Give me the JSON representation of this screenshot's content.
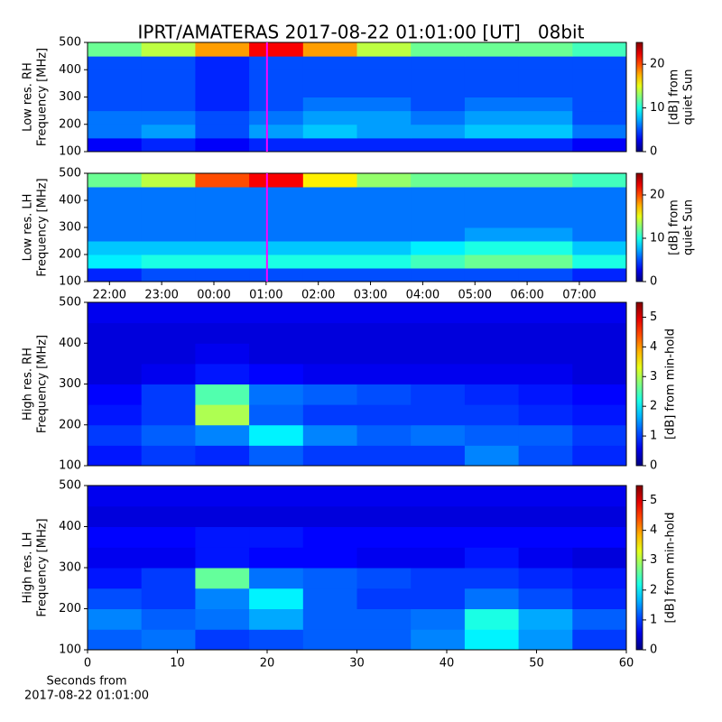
{
  "title": "IPRT/AMATERAS 2017-08-22 01:01:00 [UT]   08bit",
  "chart_data": [
    {
      "type": "heatmap",
      "ylabel": [
        "Low res. RH",
        "Frequency [MHz]"
      ],
      "ylim": [
        100,
        500
      ],
      "yticks": [
        100,
        200,
        300,
        400,
        500
      ],
      "xlim": [
        21.58,
        31.9
      ],
      "cursor": 25.017,
      "cursor_color": "#ff00ff",
      "colorbar": {
        "label": [
          "[dB] from",
          "quiet Sun"
        ],
        "clim": [
          0,
          25
        ],
        "ticks": [
          0,
          10,
          20
        ]
      },
      "z": [
        [
          3,
          4,
          3,
          4,
          4,
          4,
          4,
          4,
          4,
          3
        ],
        [
          6,
          7,
          5,
          7,
          8,
          7,
          7,
          8,
          8,
          6
        ],
        [
          6,
          6,
          5,
          6,
          7,
          7,
          6,
          7,
          7,
          5
        ],
        [
          5,
          5,
          4,
          5,
          6,
          6,
          5,
          6,
          6,
          5
        ],
        [
          5,
          5,
          4,
          5,
          5,
          5,
          5,
          5,
          5,
          5
        ],
        [
          5,
          5,
          4,
          5,
          5,
          5,
          5,
          5,
          5,
          5
        ],
        [
          5,
          5,
          4,
          5,
          5,
          5,
          5,
          5,
          5,
          5
        ],
        [
          12,
          14,
          18,
          22,
          18,
          14,
          12,
          12,
          12,
          11
        ]
      ]
    },
    {
      "type": "heatmap",
      "ylabel": [
        "Low res. LH",
        "Frequency [MHz]"
      ],
      "ylim": [
        100,
        500
      ],
      "yticks": [
        100,
        200,
        300,
        400,
        500
      ],
      "xlim": [
        21.58,
        31.9
      ],
      "cursor": 25.017,
      "cursor_color": "#ff00ff",
      "xticks": [
        {
          "value": 22,
          "label": "22:00"
        },
        {
          "value": 23,
          "label": "23:00"
        },
        {
          "value": 24,
          "label": "00:00"
        },
        {
          "value": 25,
          "label": "01:00"
        },
        {
          "value": 26,
          "label": "02:00"
        },
        {
          "value": 27,
          "label": "03:00"
        },
        {
          "value": 28,
          "label": "04:00"
        },
        {
          "value": 29,
          "label": "05:00"
        },
        {
          "value": 30,
          "label": "06:00"
        },
        {
          "value": 31,
          "label": "07:00"
        }
      ],
      "colorbar": {
        "label": [
          "[dB] from",
          "quiet Sun"
        ],
        "clim": [
          0,
          25
        ],
        "ticks": [
          0,
          10,
          20
        ]
      },
      "z": [
        [
          4,
          5,
          5,
          5,
          5,
          5,
          5,
          5,
          5,
          4
        ],
        [
          9,
          10,
          10,
          10,
          10,
          10,
          11,
          12,
          12,
          10
        ],
        [
          8,
          8,
          8,
          8,
          8,
          8,
          9,
          10,
          10,
          8
        ],
        [
          6,
          6,
          6,
          6,
          6,
          6,
          6,
          7,
          7,
          6
        ],
        [
          6,
          6,
          6,
          6,
          6,
          6,
          6,
          6,
          6,
          6
        ],
        [
          6,
          6,
          6,
          6,
          6,
          6,
          6,
          6,
          6,
          6
        ],
        [
          6,
          6,
          6,
          6,
          6,
          6,
          6,
          6,
          6,
          6
        ],
        [
          12,
          14,
          20,
          22,
          16,
          13,
          12,
          12,
          12,
          11
        ]
      ]
    },
    {
      "type": "heatmap",
      "ylabel": [
        "High res. RH",
        "Frequency [MHz]"
      ],
      "ylim": [
        100,
        500
      ],
      "yticks": [
        100,
        200,
        300,
        400,
        500
      ],
      "xlim": [
        0,
        60
      ],
      "colorbar": {
        "label": [
          "[dB] from min-hold"
        ],
        "clim": [
          0,
          5.5
        ],
        "ticks": [
          0,
          1,
          2,
          3,
          4,
          5
        ]
      },
      "z": [
        [
          0.8,
          1,
          0.9,
          1.2,
          1,
          1,
          1,
          1.4,
          1.1,
          0.9
        ],
        [
          1,
          1.2,
          1.4,
          2,
          1.4,
          1.2,
          1.3,
          1.2,
          1.2,
          1
        ],
        [
          0.8,
          1,
          3,
          1.2,
          1,
          1,
          1,
          1,
          0.9,
          0.8
        ],
        [
          0.7,
          1,
          2.5,
          1.3,
          1.2,
          1.1,
          1,
          0.9,
          0.8,
          0.7
        ],
        [
          0.5,
          0.6,
          0.8,
          0.7,
          0.6,
          0.6,
          0.6,
          0.6,
          0.6,
          0.5
        ],
        [
          0.5,
          0.5,
          0.6,
          0.5,
          0.5,
          0.5,
          0.5,
          0.5,
          0.5,
          0.5
        ],
        [
          0.5,
          0.5,
          0.5,
          0.5,
          0.5,
          0.5,
          0.5,
          0.5,
          0.5,
          0.5
        ],
        [
          0.6,
          0.6,
          0.6,
          0.6,
          0.6,
          0.6,
          0.6,
          0.6,
          0.6,
          0.6
        ]
      ]
    },
    {
      "type": "heatmap",
      "ylabel": [
        "High res. LH",
        "Frequency [MHz]"
      ],
      "ylim": [
        100,
        500
      ],
      "yticks": [
        100,
        200,
        300,
        400,
        500
      ],
      "xlim": [
        0,
        60
      ],
      "xticks": [
        0,
        10,
        20,
        30,
        40,
        50,
        60
      ],
      "xlabel": [
        "Seconds from",
        "2017-08-22 01:01:00"
      ],
      "colorbar": {
        "label": [
          "[dB] from min-hold"
        ],
        "clim": [
          0,
          5.5
        ],
        "ticks": [
          0,
          1,
          2,
          3,
          4,
          5
        ]
      },
      "z": [
        [
          1.2,
          1.3,
          1,
          1.1,
          1.2,
          1.2,
          1.4,
          2,
          1.5,
          1
        ],
        [
          1.4,
          1.2,
          1.3,
          1.6,
          1.2,
          1.2,
          1.3,
          2.2,
          1.6,
          1.2
        ],
        [
          1.1,
          1,
          1.4,
          2,
          1.2,
          1,
          1,
          1.3,
          1.1,
          0.9
        ],
        [
          0.8,
          1,
          2.6,
          1.3,
          1.2,
          1.1,
          1,
          1,
          0.9,
          0.8
        ],
        [
          0.6,
          0.6,
          0.8,
          0.7,
          0.7,
          0.6,
          0.6,
          0.8,
          0.6,
          0.5
        ],
        [
          0.7,
          0.7,
          0.8,
          0.8,
          0.7,
          0.7,
          0.7,
          0.7,
          0.7,
          0.7
        ],
        [
          0.5,
          0.5,
          0.5,
          0.5,
          0.5,
          0.5,
          0.5,
          0.5,
          0.5,
          0.5
        ],
        [
          0.6,
          0.6,
          0.6,
          0.6,
          0.6,
          0.6,
          0.6,
          0.6,
          0.6,
          0.6
        ]
      ]
    }
  ]
}
